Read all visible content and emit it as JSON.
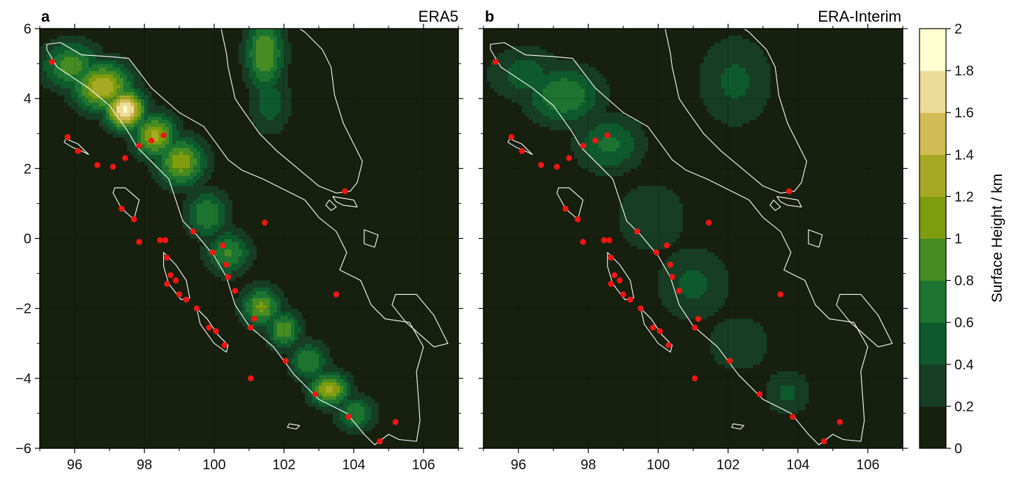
{
  "panels": [
    {
      "letter": "a",
      "title": "ERA5",
      "dataset": "ERA5"
    },
    {
      "letter": "b",
      "title": "ERA-Interim",
      "dataset": "ERA-Interim"
    }
  ],
  "axes": {
    "x_ticks": [
      96,
      98,
      100,
      102,
      104,
      106
    ],
    "x_tick_labels": [
      "96",
      "98",
      "100",
      "102",
      "104",
      "106"
    ],
    "y_ticks": [
      6,
      4,
      2,
      0,
      -2,
      -4,
      -6
    ],
    "y_tick_labels": [
      "6",
      "4",
      "2",
      "0",
      "−2",
      "−4",
      "−6"
    ],
    "lon_range": [
      95,
      107
    ],
    "lat_range": [
      -6,
      6
    ]
  },
  "colorbar": {
    "label": "Surface Height / km",
    "levels": [
      0,
      0.2,
      0.4,
      0.6,
      0.8,
      1,
      1.2,
      1.4,
      1.6,
      1.8,
      2
    ],
    "level_labels": [
      "0",
      "0.2",
      "0.4",
      "0.6",
      "0.8",
      "1",
      "1.2",
      "1.4",
      "1.6",
      "1.8",
      "2"
    ],
    "colors": [
      "#17200f",
      "#173d24",
      "#0e5a2d",
      "#1d7430",
      "#478b23",
      "#7e9c0e",
      "#a7a926",
      "#d2bc55",
      "#eddc99",
      "#ffffd0"
    ]
  },
  "colors": {
    "background": "#17200f",
    "coastline": "#ffffff",
    "station": "#ff1414"
  },
  "stations": [
    [
      95.35,
      5.05
    ],
    [
      95.8,
      2.9
    ],
    [
      96.1,
      2.5
    ],
    [
      96.65,
      2.1
    ],
    [
      97.1,
      2.05
    ],
    [
      97.45,
      2.3
    ],
    [
      97.35,
      0.85
    ],
    [
      97.85,
      2.65
    ],
    [
      98.2,
      2.8
    ],
    [
      98.55,
      2.95
    ],
    [
      97.7,
      0.55
    ],
    [
      97.85,
      -0.1
    ],
    [
      98.45,
      -0.05
    ],
    [
      98.65,
      -0.55
    ],
    [
      98.6,
      -0.05
    ],
    [
      98.75,
      -1.05
    ],
    [
      98.65,
      -1.3
    ],
    [
      98.9,
      -1.2
    ],
    [
      99.0,
      -1.6
    ],
    [
      99.2,
      -1.75
    ],
    [
      99.4,
      0.2
    ],
    [
      99.5,
      -2.0
    ],
    [
      99.85,
      -2.55
    ],
    [
      100.05,
      -2.65
    ],
    [
      100.3,
      -3.05
    ],
    [
      99.95,
      -0.4
    ],
    [
      100.25,
      -0.2
    ],
    [
      100.35,
      -0.75
    ],
    [
      100.4,
      -1.1
    ],
    [
      100.6,
      -1.5
    ],
    [
      101.05,
      -4.0
    ],
    [
      101.05,
      -2.55
    ],
    [
      101.15,
      -2.3
    ],
    [
      101.45,
      0.45
    ],
    [
      102.05,
      -3.5
    ],
    [
      102.9,
      -4.45
    ],
    [
      103.5,
      -1.6
    ],
    [
      103.85,
      -5.1
    ],
    [
      103.75,
      1.35
    ],
    [
      104.75,
      -5.8
    ],
    [
      105.2,
      -5.25
    ]
  ],
  "surface_peaks": {
    "ERA5": [
      {
        "lon": 95.9,
        "lat": 4.95,
        "height": 0.9,
        "spread_lon": 0.6,
        "spread_lat": 0.5
      },
      {
        "lon": 96.8,
        "lat": 4.35,
        "height": 1.35,
        "spread_lon": 0.6,
        "spread_lat": 0.5
      },
      {
        "lon": 97.45,
        "lat": 3.7,
        "height": 1.85,
        "spread_lon": 0.4,
        "spread_lat": 0.4
      },
      {
        "lon": 98.3,
        "lat": 2.95,
        "height": 1.25,
        "spread_lon": 0.45,
        "spread_lat": 0.45
      },
      {
        "lon": 99.05,
        "lat": 2.2,
        "height": 1.15,
        "spread_lon": 0.5,
        "spread_lat": 0.5
      },
      {
        "lon": 99.8,
        "lat": 0.7,
        "height": 0.8,
        "spread_lon": 0.45,
        "spread_lat": 0.5
      },
      {
        "lon": 100.4,
        "lat": -0.4,
        "height": 0.85,
        "spread_lon": 0.45,
        "spread_lat": 0.45
      },
      {
        "lon": 101.35,
        "lat": -1.95,
        "height": 1.05,
        "spread_lon": 0.4,
        "spread_lat": 0.4
      },
      {
        "lon": 102.0,
        "lat": -2.6,
        "height": 0.95,
        "spread_lon": 0.35,
        "spread_lat": 0.4
      },
      {
        "lon": 102.7,
        "lat": -3.5,
        "height": 0.8,
        "spread_lon": 0.4,
        "spread_lat": 0.4
      },
      {
        "lon": 103.3,
        "lat": -4.3,
        "height": 1.25,
        "spread_lon": 0.4,
        "spread_lat": 0.35
      },
      {
        "lon": 104.05,
        "lat": -5.0,
        "height": 0.8,
        "spread_lon": 0.4,
        "spread_lat": 0.35
      },
      {
        "lon": 101.45,
        "lat": 5.3,
        "height": 1.0,
        "spread_lon": 0.4,
        "spread_lat": 0.8
      },
      {
        "lon": 101.6,
        "lat": 3.9,
        "height": 0.5,
        "spread_lon": 0.45,
        "spread_lat": 0.7
      }
    ],
    "ERA-Interim": [
      {
        "lon": 96.2,
        "lat": 4.7,
        "height": 0.5,
        "spread_lon": 0.8,
        "spread_lat": 0.6
      },
      {
        "lon": 97.3,
        "lat": 4.1,
        "height": 0.8,
        "spread_lon": 0.8,
        "spread_lat": 0.6
      },
      {
        "lon": 98.6,
        "lat": 2.7,
        "height": 0.65,
        "spread_lon": 0.7,
        "spread_lat": 0.6
      },
      {
        "lon": 99.8,
        "lat": 0.6,
        "height": 0.4,
        "spread_lon": 0.8,
        "spread_lat": 0.8
      },
      {
        "lon": 101.0,
        "lat": -1.3,
        "height": 0.45,
        "spread_lon": 0.8,
        "spread_lat": 0.8
      },
      {
        "lon": 102.3,
        "lat": -3.0,
        "height": 0.35,
        "spread_lon": 0.8,
        "spread_lat": 0.7
      },
      {
        "lon": 103.7,
        "lat": -4.4,
        "height": 0.45,
        "spread_lon": 0.5,
        "spread_lat": 0.5
      },
      {
        "lon": 102.2,
        "lat": 4.5,
        "height": 0.45,
        "spread_lon": 0.8,
        "spread_lat": 1.0
      }
    ]
  },
  "coastlines": {
    "sumatra": [
      [
        95.2,
        5.55
      ],
      [
        95.6,
        5.6
      ],
      [
        96.2,
        5.25
      ],
      [
        97.0,
        5.2
      ],
      [
        97.55,
        5.15
      ],
      [
        98.2,
        4.3
      ],
      [
        99.0,
        3.6
      ],
      [
        99.7,
        3.2
      ],
      [
        100.0,
        2.8
      ],
      [
        100.4,
        2.25
      ],
      [
        100.8,
        1.95
      ],
      [
        101.4,
        1.7
      ],
      [
        102.1,
        1.35
      ],
      [
        102.6,
        1.1
      ],
      [
        103.0,
        0.6
      ],
      [
        103.5,
        0.2
      ],
      [
        103.8,
        -0.4
      ],
      [
        103.6,
        -0.9
      ],
      [
        104.2,
        -1.2
      ],
      [
        104.5,
        -1.9
      ],
      [
        104.9,
        -2.3
      ],
      [
        105.6,
        -2.4
      ],
      [
        106.0,
        -3.1
      ],
      [
        105.8,
        -3.8
      ],
      [
        105.9,
        -5.2
      ],
      [
        105.8,
        -5.8
      ],
      [
        105.3,
        -5.75
      ],
      [
        105.0,
        -5.6
      ],
      [
        104.6,
        -5.9
      ],
      [
        104.3,
        -5.6
      ],
      [
        103.8,
        -5.0
      ],
      [
        103.0,
        -4.6
      ],
      [
        102.3,
        -3.9
      ],
      [
        101.7,
        -3.1
      ],
      [
        101.0,
        -2.5
      ],
      [
        100.6,
        -1.9
      ],
      [
        100.35,
        -1.1
      ],
      [
        100.0,
        -0.5
      ],
      [
        99.5,
        0.1
      ],
      [
        99.1,
        0.5
      ],
      [
        98.7,
        1.7
      ],
      [
        98.3,
        2.1
      ],
      [
        97.8,
        2.6
      ],
      [
        97.5,
        3.1
      ],
      [
        97.0,
        3.8
      ],
      [
        96.4,
        4.3
      ],
      [
        95.5,
        4.9
      ],
      [
        95.2,
        5.4
      ]
    ],
    "malay_peninsula": [
      [
        100.2,
        6.0
      ],
      [
        100.35,
        5.3
      ],
      [
        100.4,
        4.9
      ],
      [
        100.6,
        4.0
      ],
      [
        100.8,
        3.7
      ],
      [
        101.3,
        3.0
      ],
      [
        101.8,
        2.5
      ],
      [
        102.4,
        2.0
      ],
      [
        103.0,
        1.5
      ],
      [
        103.5,
        1.3
      ],
      [
        103.9,
        1.35
      ],
      [
        104.1,
        1.6
      ],
      [
        104.25,
        2.2
      ],
      [
        103.7,
        3.3
      ],
      [
        103.45,
        4.1
      ],
      [
        103.35,
        4.9
      ],
      [
        103.1,
        5.4
      ],
      [
        102.6,
        5.9
      ],
      [
        102.3,
        6.1
      ]
    ],
    "simeulue": [
      [
        95.75,
        2.85
      ],
      [
        96.1,
        2.7
      ],
      [
        96.4,
        2.4
      ],
      [
        96.2,
        2.5
      ],
      [
        95.95,
        2.6
      ],
      [
        95.7,
        2.75
      ]
    ],
    "nias": [
      [
        97.15,
        1.45
      ],
      [
        97.45,
        1.45
      ],
      [
        97.85,
        1.1
      ],
      [
        97.7,
        0.55
      ],
      [
        97.35,
        0.85
      ],
      [
        97.1,
        1.3
      ]
    ],
    "siberut": [
      [
        98.55,
        -0.4
      ],
      [
        98.9,
        -0.75
      ],
      [
        99.2,
        -1.2
      ],
      [
        99.3,
        -1.7
      ],
      [
        99.05,
        -1.75
      ],
      [
        98.7,
        -1.3
      ],
      [
        98.55,
        -0.8
      ]
    ],
    "sipora_pagai": [
      [
        99.5,
        -2.0
      ],
      [
        99.8,
        -2.3
      ],
      [
        100.1,
        -2.75
      ],
      [
        100.4,
        -3.05
      ],
      [
        100.35,
        -3.25
      ],
      [
        100.0,
        -3.0
      ],
      [
        99.6,
        -2.45
      ]
    ],
    "enggano": [
      [
        102.15,
        -5.3
      ],
      [
        102.45,
        -5.35
      ],
      [
        102.35,
        -5.45
      ],
      [
        102.1,
        -5.4
      ]
    ],
    "bangka": [
      [
        105.2,
        -1.6
      ],
      [
        105.8,
        -1.6
      ],
      [
        106.3,
        -2.2
      ],
      [
        106.7,
        -3.0
      ],
      [
        106.3,
        -3.1
      ],
      [
        105.5,
        -2.4
      ],
      [
        105.1,
        -1.9
      ]
    ],
    "riau_islands": [
      [
        103.4,
        1.2
      ],
      [
        104.0,
        1.1
      ],
      [
        104.1,
        0.9
      ],
      [
        103.7,
        0.95
      ],
      [
        103.5,
        1.05
      ]
    ],
    "karimun": [
      [
        103.3,
        1.1
      ],
      [
        103.5,
        0.9
      ],
      [
        103.35,
        0.8
      ],
      [
        103.2,
        0.95
      ]
    ],
    "lingga": [
      [
        104.3,
        0.25
      ],
      [
        104.7,
        0.1
      ],
      [
        104.6,
        -0.25
      ],
      [
        104.3,
        -0.15
      ]
    ]
  }
}
